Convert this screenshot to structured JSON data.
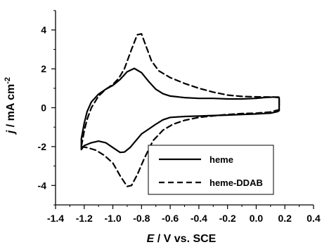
{
  "chart_data": {
    "type": "line",
    "title": "",
    "xlabel": {
      "symbol": "E",
      "rest": " / V vs. SCE"
    },
    "ylabel": {
      "symbol": "j",
      "rest": " / mA cm",
      "sup": "-2"
    },
    "xlim": [
      -1.4,
      0.4
    ],
    "ylim": [
      -5,
      5
    ],
    "xticks": [
      "-1.4",
      "-1.2",
      "-1.0",
      "-0.8",
      "-0.6",
      "-0.4",
      "-0.2",
      "0.0",
      "0.2",
      "0.4"
    ],
    "yticks": [
      "-4",
      "-2",
      "0",
      "2",
      "4"
    ],
    "legend_position": "bottom-right",
    "series": [
      {
        "name": "heme",
        "style": "solid",
        "color": "#000000",
        "points": [
          [
            -1.22,
            -2.15
          ],
          [
            -1.2,
            -1.95
          ],
          [
            -1.15,
            -1.8
          ],
          [
            -1.1,
            -1.72
          ],
          [
            -1.05,
            -1.8
          ],
          [
            -1.0,
            -2.05
          ],
          [
            -0.95,
            -2.3
          ],
          [
            -0.92,
            -2.28
          ],
          [
            -0.88,
            -2.05
          ],
          [
            -0.84,
            -1.7
          ],
          [
            -0.8,
            -1.35
          ],
          [
            -0.75,
            -1.1
          ],
          [
            -0.7,
            -0.85
          ],
          [
            -0.65,
            -0.62
          ],
          [
            -0.6,
            -0.5
          ],
          [
            -0.5,
            -0.45
          ],
          [
            -0.4,
            -0.43
          ],
          [
            -0.3,
            -0.4
          ],
          [
            -0.2,
            -0.38
          ],
          [
            -0.1,
            -0.35
          ],
          [
            0.0,
            -0.32
          ],
          [
            0.05,
            -0.3
          ],
          [
            0.1,
            -0.28
          ],
          [
            0.15,
            -0.2
          ],
          [
            0.16,
            -0.15
          ],
          [
            0.16,
            0.52
          ],
          [
            0.12,
            0.55
          ],
          [
            0.05,
            0.52
          ],
          [
            0.0,
            0.48
          ],
          [
            -0.1,
            0.45
          ],
          [
            -0.2,
            0.45
          ],
          [
            -0.3,
            0.48
          ],
          [
            -0.4,
            0.48
          ],
          [
            -0.5,
            0.52
          ],
          [
            -0.6,
            0.6
          ],
          [
            -0.65,
            0.72
          ],
          [
            -0.7,
            0.95
          ],
          [
            -0.75,
            1.35
          ],
          [
            -0.8,
            1.8
          ],
          [
            -0.85,
            2.02
          ],
          [
            -0.9,
            1.85
          ],
          [
            -0.95,
            1.45
          ],
          [
            -1.0,
            1.15
          ],
          [
            -1.05,
            0.95
          ],
          [
            -1.1,
            0.7
          ],
          [
            -1.15,
            0.3
          ],
          [
            -1.18,
            -0.2
          ],
          [
            -1.2,
            -0.8
          ],
          [
            -1.22,
            -1.6
          ],
          [
            -1.22,
            -2.15
          ]
        ]
      },
      {
        "name": "heme-DDAB",
        "style": "dashed",
        "color": "#000000",
        "points": [
          [
            -1.22,
            -2.0
          ],
          [
            -1.18,
            -2.05
          ],
          [
            -1.12,
            -2.18
          ],
          [
            -1.06,
            -2.45
          ],
          [
            -1.0,
            -2.85
          ],
          [
            -0.95,
            -3.5
          ],
          [
            -0.9,
            -4.05
          ],
          [
            -0.87,
            -4.0
          ],
          [
            -0.83,
            -3.45
          ],
          [
            -0.78,
            -2.6
          ],
          [
            -0.72,
            -1.7
          ],
          [
            -0.65,
            -1.15
          ],
          [
            -0.58,
            -0.85
          ],
          [
            -0.5,
            -0.65
          ],
          [
            -0.4,
            -0.5
          ],
          [
            -0.3,
            -0.42
          ],
          [
            -0.2,
            -0.35
          ],
          [
            -0.1,
            -0.3
          ],
          [
            0.0,
            -0.28
          ],
          [
            0.1,
            -0.22
          ],
          [
            0.16,
            -0.1
          ],
          [
            0.16,
            0.55
          ],
          [
            0.1,
            0.55
          ],
          [
            0.0,
            0.56
          ],
          [
            -0.1,
            0.58
          ],
          [
            -0.2,
            0.65
          ],
          [
            -0.3,
            0.8
          ],
          [
            -0.4,
            1.0
          ],
          [
            -0.5,
            1.25
          ],
          [
            -0.6,
            1.55
          ],
          [
            -0.68,
            1.9
          ],
          [
            -0.73,
            2.4
          ],
          [
            -0.77,
            3.2
          ],
          [
            -0.8,
            3.8
          ],
          [
            -0.83,
            3.75
          ],
          [
            -0.87,
            3.0
          ],
          [
            -0.92,
            2.0
          ],
          [
            -0.96,
            1.5
          ],
          [
            -1.0,
            1.2
          ],
          [
            -1.05,
            0.95
          ],
          [
            -1.1,
            0.6
          ],
          [
            -1.15,
            0.0
          ],
          [
            -1.18,
            -0.6
          ],
          [
            -1.2,
            -1.2
          ],
          [
            -1.22,
            -2.0
          ]
        ]
      }
    ]
  }
}
